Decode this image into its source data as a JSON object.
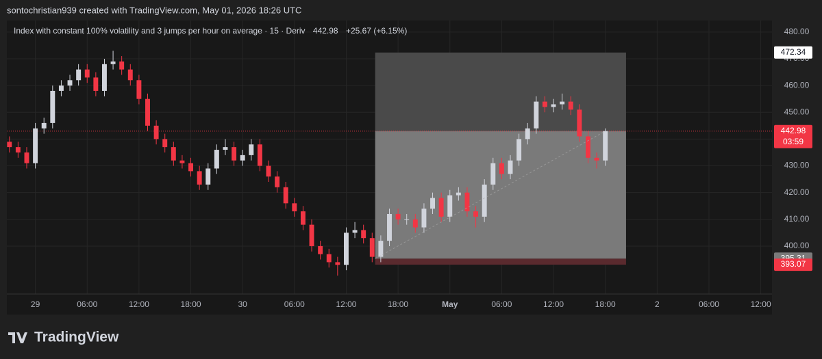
{
  "header": {
    "attribution": "sontochristian939 created with TradingView.com, May 01, 2026 18:26 UTC",
    "brand": "TradingView"
  },
  "chart_data": {
    "type": "candlestick",
    "title": "Index with constant 100% volatility and 3 jumps per hour on average · 15 · Deriv",
    "last_price": "442.98",
    "change": "+25.67 (+6.15%)",
    "open": [
      439,
      437,
      435,
      431,
      444,
      446,
      458,
      460,
      462,
      466,
      463,
      458,
      468,
      469,
      466,
      462,
      455,
      445,
      440,
      437,
      432,
      431,
      428,
      423,
      429,
      436,
      437,
      432,
      434,
      438,
      430,
      426,
      422,
      416,
      413,
      408,
      400,
      397,
      394,
      393,
      405,
      406,
      403,
      396,
      402,
      412,
      410,
      410,
      407,
      414,
      418,
      411,
      419,
      420,
      413,
      411,
      423,
      431,
      427,
      432,
      440,
      444,
      454,
      452,
      453,
      454,
      451,
      441,
      433,
      432
    ],
    "high": [
      441,
      439,
      437,
      446,
      448,
      460,
      462,
      464,
      468,
      468,
      465,
      470,
      473,
      471,
      468,
      464,
      457,
      447,
      442,
      439,
      434,
      433,
      430,
      431,
      438,
      440,
      439,
      436,
      440,
      440,
      432,
      428,
      424,
      418,
      415,
      410,
      402,
      399,
      396,
      407,
      409,
      408,
      405,
      404,
      414,
      414,
      412,
      412,
      416,
      420,
      420,
      421,
      422,
      422,
      415,
      425,
      433,
      433,
      434,
      442,
      446,
      456,
      456,
      455,
      457,
      456,
      453,
      443,
      435,
      444
    ],
    "low": [
      435,
      433,
      429,
      429,
      442,
      444,
      456,
      458,
      460,
      461,
      456,
      456,
      466,
      464,
      460,
      453,
      443,
      438,
      435,
      430,
      429,
      426,
      421,
      421,
      427,
      434,
      430,
      430,
      432,
      428,
      424,
      420,
      414,
      411,
      406,
      398,
      395,
      392,
      389,
      391,
      403,
      401,
      394,
      394,
      400,
      408,
      408,
      405,
      405,
      412,
      409,
      409,
      417,
      411,
      407,
      409,
      421,
      425,
      425,
      430,
      438,
      442,
      450,
      450,
      451,
      449,
      439,
      431,
      429,
      430
    ],
    "close": [
      437,
      435,
      431,
      444,
      446,
      458,
      460,
      462,
      466,
      463,
      458,
      468,
      469,
      466,
      462,
      455,
      445,
      440,
      437,
      432,
      431,
      428,
      423,
      429,
      436,
      437,
      432,
      434,
      438,
      430,
      426,
      422,
      416,
      413,
      408,
      400,
      397,
      394,
      393,
      405,
      406,
      403,
      396,
      402,
      412,
      410,
      410,
      407,
      414,
      418,
      411,
      419,
      420,
      413,
      411,
      423,
      431,
      427,
      432,
      440,
      444,
      454,
      452,
      453,
      454,
      451,
      441,
      433,
      432,
      442.98
    ],
    "up_color": "#d1d4dc",
    "down_color": "#f23645",
    "xlim": [
      -0.3,
      88.3
    ],
    "xticks": [
      {
        "value": 3,
        "label": "29"
      },
      {
        "value": 9,
        "label": "06:00"
      },
      {
        "value": 15,
        "label": "12:00"
      },
      {
        "value": 21,
        "label": "18:00"
      },
      {
        "value": 27,
        "label": "30"
      },
      {
        "value": 33,
        "label": "06:00"
      },
      {
        "value": 39,
        "label": "12:00"
      },
      {
        "value": 45,
        "label": "18:00"
      },
      {
        "value": 51,
        "label": "May"
      },
      {
        "value": 57,
        "label": "06:00"
      },
      {
        "value": 63,
        "label": "12:00"
      },
      {
        "value": 69,
        "label": "18:00"
      },
      {
        "value": 75,
        "label": "2"
      },
      {
        "value": 81,
        "label": "06:00"
      },
      {
        "value": 87,
        "label": "12:00"
      }
    ],
    "ylim": [
      382.1,
      484.3
    ],
    "yticks": [
      {
        "value": 400,
        "label": "400.00"
      },
      {
        "value": 410,
        "label": "410.00"
      },
      {
        "value": 420,
        "label": "420.00"
      },
      {
        "value": 430,
        "label": "430.00"
      },
      {
        "value": 440,
        "label": "440.00"
      },
      {
        "value": 450,
        "label": "450.00"
      },
      {
        "value": 460,
        "label": "460.00"
      },
      {
        "value": 470,
        "label": "470.00"
      },
      {
        "value": 480,
        "label": "480.00"
      }
    ],
    "grid": true,
    "position": {
      "start": 42.35,
      "end": 71.4,
      "target": 472.34,
      "entry": 395.31,
      "stop": 393.07,
      "current": 442.98,
      "countdown": "03:59"
    }
  }
}
